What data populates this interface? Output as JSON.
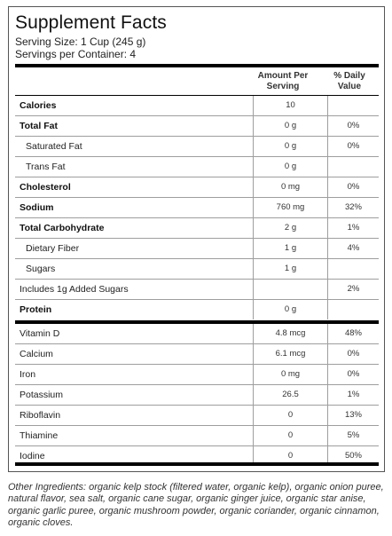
{
  "label": {
    "title": "Supplement Facts",
    "serving_size": "Serving Size: 1 Cup (245 g)",
    "servings_per_container": "Servings per Container: 4",
    "col_amount_line1": "Amount Per",
    "col_amount_line2": "Serving",
    "col_dv_line1": "% Daily",
    "col_dv_line2": "Value"
  },
  "rows_group1": [
    {
      "name": "Calories",
      "amount": "10",
      "dv": "",
      "bold": true,
      "indent": 0
    },
    {
      "name": "Total Fat",
      "amount": "0 g",
      "dv": "0%",
      "bold": true,
      "indent": 0
    },
    {
      "name": "Saturated Fat",
      "amount": "0 g",
      "dv": "0%",
      "bold": false,
      "indent": 1
    },
    {
      "name": "Trans Fat",
      "amount": "0 g",
      "dv": "",
      "bold": false,
      "indent": 1
    },
    {
      "name": "Cholesterol",
      "amount": "0 mg",
      "dv": "0%",
      "bold": true,
      "indent": 0
    },
    {
      "name": "Sodium",
      "amount": "760 mg",
      "dv": "32%",
      "bold": true,
      "indent": 0
    },
    {
      "name": "Total Carbohydrate",
      "amount": "2 g",
      "dv": "1%",
      "bold": true,
      "indent": 0
    },
    {
      "name": "Dietary Fiber",
      "amount": "1 g",
      "dv": "4%",
      "bold": false,
      "indent": 1
    },
    {
      "name": "Sugars",
      "amount": "1 g",
      "dv": "",
      "bold": false,
      "indent": 1
    },
    {
      "name": "Includes 1g Added Sugars",
      "amount": "",
      "dv": "2%",
      "bold": false,
      "indent": 0
    },
    {
      "name": "Protein",
      "amount": "0 g",
      "dv": "",
      "bold": true,
      "indent": 0
    }
  ],
  "rows_group2": [
    {
      "name": "Vitamin D",
      "amount": "4.8 mcg",
      "dv": "48%",
      "bold": false,
      "indent": 0
    },
    {
      "name": "Calcium",
      "amount": "6.1 mcg",
      "dv": "0%",
      "bold": false,
      "indent": 0
    },
    {
      "name": "Iron",
      "amount": "0 mg",
      "dv": "0%",
      "bold": false,
      "indent": 0
    },
    {
      "name": "Potassium",
      "amount": "26.5",
      "dv": "1%",
      "bold": false,
      "indent": 0
    },
    {
      "name": "Riboflavin",
      "amount": "0",
      "dv": "13%",
      "bold": false,
      "indent": 0
    },
    {
      "name": "Thiamine",
      "amount": "0",
      "dv": "5%",
      "bold": false,
      "indent": 0
    },
    {
      "name": "Iodine",
      "amount": "0",
      "dv": "50%",
      "bold": false,
      "indent": 0
    }
  ],
  "ingredients": "Other Ingredients: organic kelp stock (filtered water, organic kelp), organic onion puree, natural flavor, sea salt, organic cane sugar, organic ginger juice, organic star anise, organic garlic puree, organic mushroom powder, organic coriander, organic cinnamon, organic cloves."
}
